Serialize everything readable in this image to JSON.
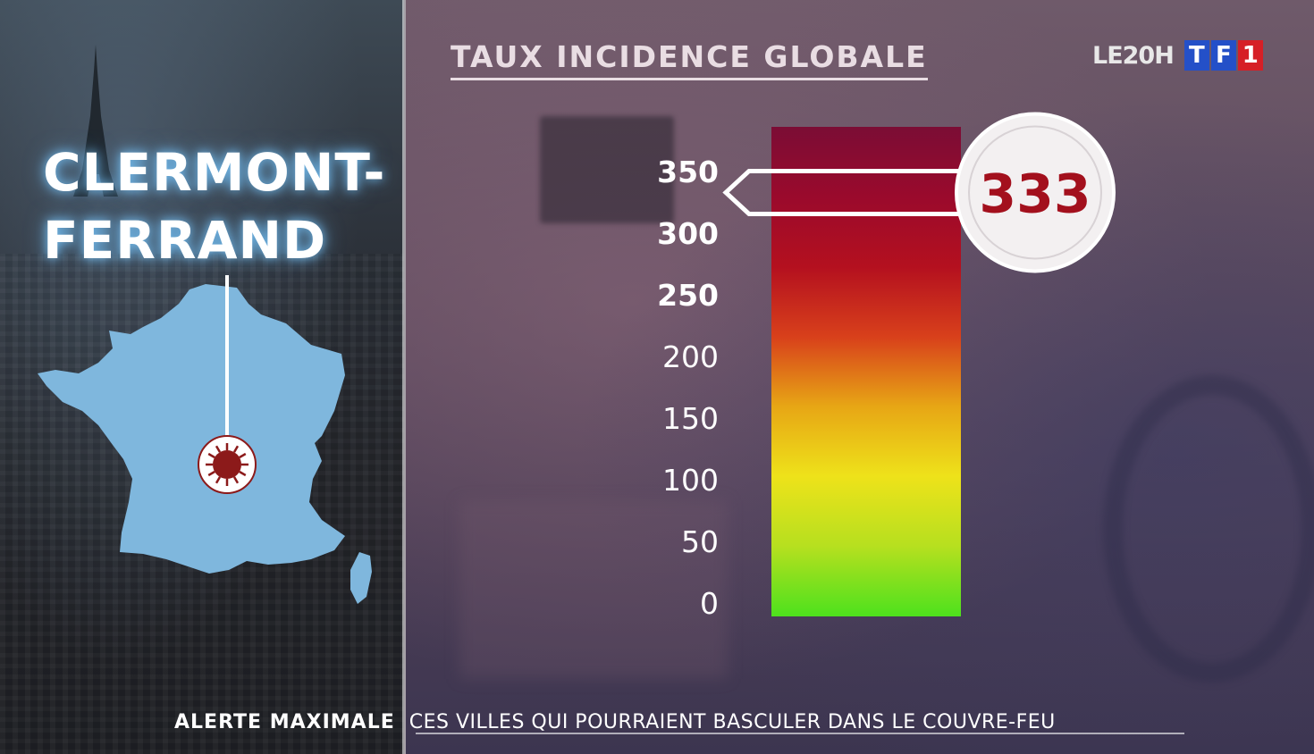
{
  "chart_data": {
    "type": "bar",
    "title": "TAUX INCIDENCE GLOBALE",
    "categories": [
      "CLERMONT-FERRAND"
    ],
    "values": [
      333
    ],
    "value_label": "333",
    "ylim": [
      0,
      350
    ],
    "ticks": [
      "0",
      "50",
      "100",
      "150",
      "200",
      "250",
      "300",
      "350"
    ],
    "bold_ticks_from": 250,
    "gradient_colors": [
      "#4de11d",
      "#b6e01f",
      "#eee21a",
      "#e7a615",
      "#d8401b",
      "#b4101f",
      "#9a0a2c",
      "#7b0d35"
    ],
    "grid": false,
    "legend": "none"
  },
  "city": {
    "line1": "CLERMONT-",
    "line2": "FERRAND"
  },
  "map": {
    "fill_color": "#7fb7dd",
    "marker_icon": "virus-icon",
    "marker_color": "#8c1a1a"
  },
  "logo": {
    "program": "LE20H",
    "channel_letters": [
      "T",
      "F",
      "1"
    ]
  },
  "banner": {
    "label": "ALERTE MAXIMALE",
    "text": "CES VILLES QUI POURRAIENT BASCULER DANS LE COUVRE-FEU"
  },
  "colors": {
    "callout_text": "#a3101d",
    "title_text": "#e9dde3"
  }
}
